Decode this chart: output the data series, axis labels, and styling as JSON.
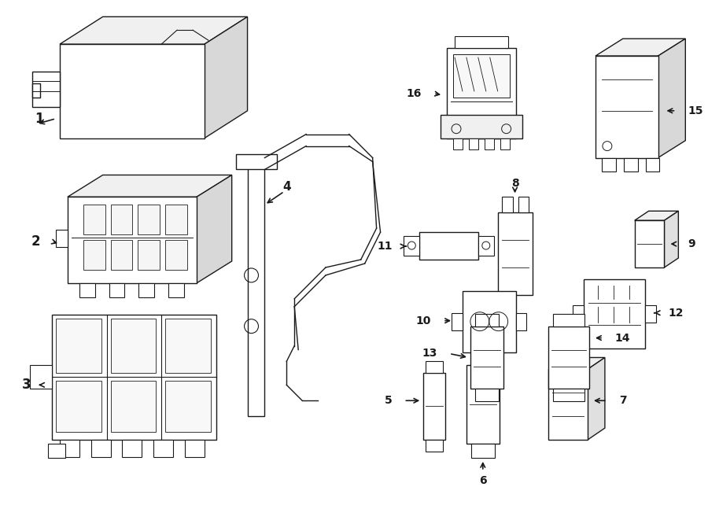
{
  "bg_color": "#ffffff",
  "line_color": "#1a1a1a",
  "fig_width": 9.0,
  "fig_height": 6.61,
  "dpi": 100,
  "lw": 1.0,
  "xlim": [
    0,
    900
  ],
  "ylim": [
    0,
    661
  ]
}
